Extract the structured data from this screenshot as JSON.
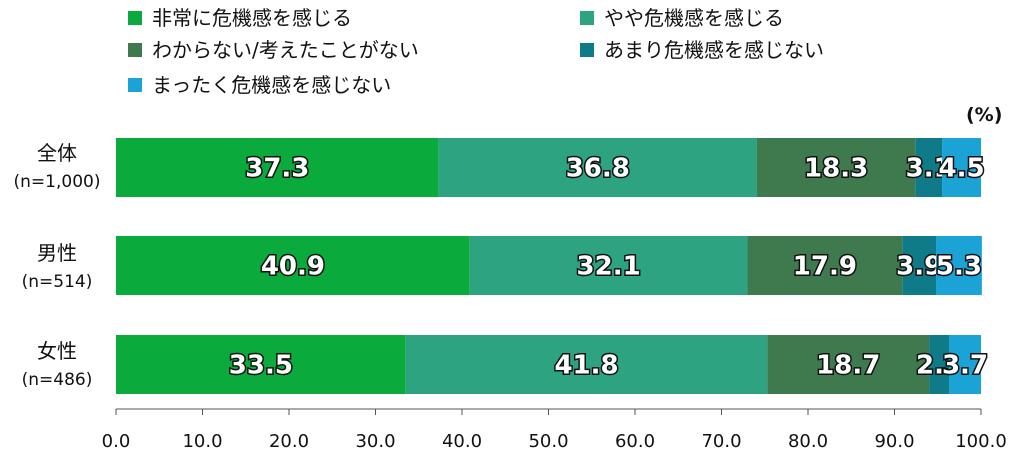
{
  "chart_data": {
    "type": "bar",
    "orientation": "horizontal",
    "stacked": true,
    "unit_label": "(%)",
    "legend_placement": "top",
    "categories": [
      {
        "name": "全体",
        "n": "(n=1,000)"
      },
      {
        "name": "男性",
        "n": "(n=514)"
      },
      {
        "name": "女性",
        "n": "(n=486)"
      }
    ],
    "series": [
      {
        "name": "非常に危機感を感じる",
        "color": "#0aab3c",
        "values": [
          37.3,
          40.9,
          33.5
        ]
      },
      {
        "name": "やや危機感を感じる",
        "color": "#2ea381",
        "values": [
          36.8,
          32.1,
          41.8
        ]
      },
      {
        "name": "わからない/考えたことがない",
        "color": "#3f7a4e",
        "values": [
          18.3,
          17.9,
          18.7
        ]
      },
      {
        "name": "あまり危機感を感じない",
        "color": "#0f7b88",
        "values": [
          3.1,
          3.9,
          2.3
        ]
      },
      {
        "name": "まったく危機感を感じない",
        "color": "#1ba3d6",
        "values": [
          4.5,
          5.3,
          3.7
        ]
      }
    ],
    "xlim": [
      0,
      100
    ],
    "x_ticks": [
      "0.0",
      "10.0",
      "20.0",
      "30.0",
      "40.0",
      "50.0",
      "60.0",
      "70.0",
      "80.0",
      "90.0",
      "100.0"
    ],
    "grid": false
  }
}
